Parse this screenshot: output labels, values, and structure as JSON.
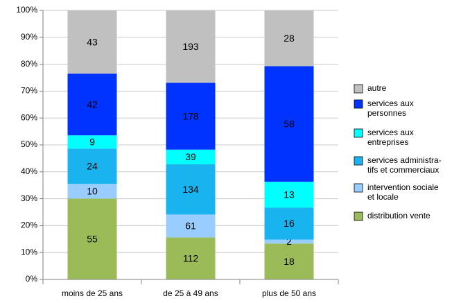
{
  "chart_data": {
    "type": "bar",
    "stacked": "percent",
    "categories": [
      "moins de 25 ans",
      "de 25 à 49 ans",
      "plus de 50 ans"
    ],
    "series": [
      {
        "name": "distribution vente",
        "color": "#9bbb59",
        "values": [
          55,
          112,
          18
        ]
      },
      {
        "name": "intervention sociale\net locale",
        "color": "#99ccff",
        "values": [
          10,
          61,
          2
        ]
      },
      {
        "name": "services administra-\ntifs et commerciaux",
        "color": "#19b4f0",
        "values": [
          24,
          134,
          16
        ]
      },
      {
        "name": "services aux\nentreprises",
        "color": "#00ffff",
        "values": [
          9,
          39,
          13
        ]
      },
      {
        "name": "services aux\npersonnes",
        "color": "#0033ff",
        "values": [
          42,
          178,
          58
        ]
      },
      {
        "name": "autre",
        "color": "#c0c0c0",
        "values": [
          43,
          193,
          28
        ]
      }
    ],
    "ylim": [
      0,
      100
    ],
    "yticks": [
      {
        "value": 0,
        "label": "0%"
      },
      {
        "value": 10,
        "label": "10%"
      },
      {
        "value": 20,
        "label": "20%"
      },
      {
        "value": 30,
        "label": "30%"
      },
      {
        "value": 40,
        "label": "40%"
      },
      {
        "value": 50,
        "label": "50%"
      },
      {
        "value": 60,
        "label": "60%"
      },
      {
        "value": 70,
        "label": "70%"
      },
      {
        "value": 80,
        "label": "80%"
      },
      {
        "value": 90,
        "label": "90%"
      },
      {
        "value": 100,
        "label": "100%"
      }
    ],
    "grid": true,
    "legend": "right"
  }
}
